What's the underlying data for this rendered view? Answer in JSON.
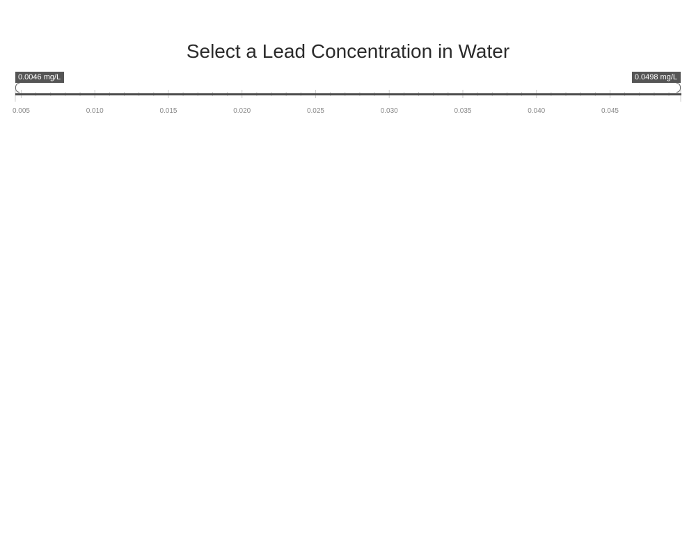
{
  "title": "Select a Lead Concentration in Water",
  "slider": {
    "unit": "mg/L",
    "domain_min": 0.0046,
    "domain_max": 0.0498,
    "selected_min": 0.0046,
    "selected_max": 0.0498,
    "min_label": "0.0046 mg/L",
    "max_label": "0.0498 mg/L",
    "tick_labels": [
      "0.005",
      "0.010",
      "0.015",
      "0.020",
      "0.025",
      "0.030",
      "0.035",
      "0.040",
      "0.045"
    ],
    "major_step": 0.005,
    "minor_step": 0.001,
    "colors": {
      "track": "#4c4c4c",
      "tag_bg": "#555555",
      "tick": "#cccccc",
      "tick_label": "#888888"
    }
  }
}
